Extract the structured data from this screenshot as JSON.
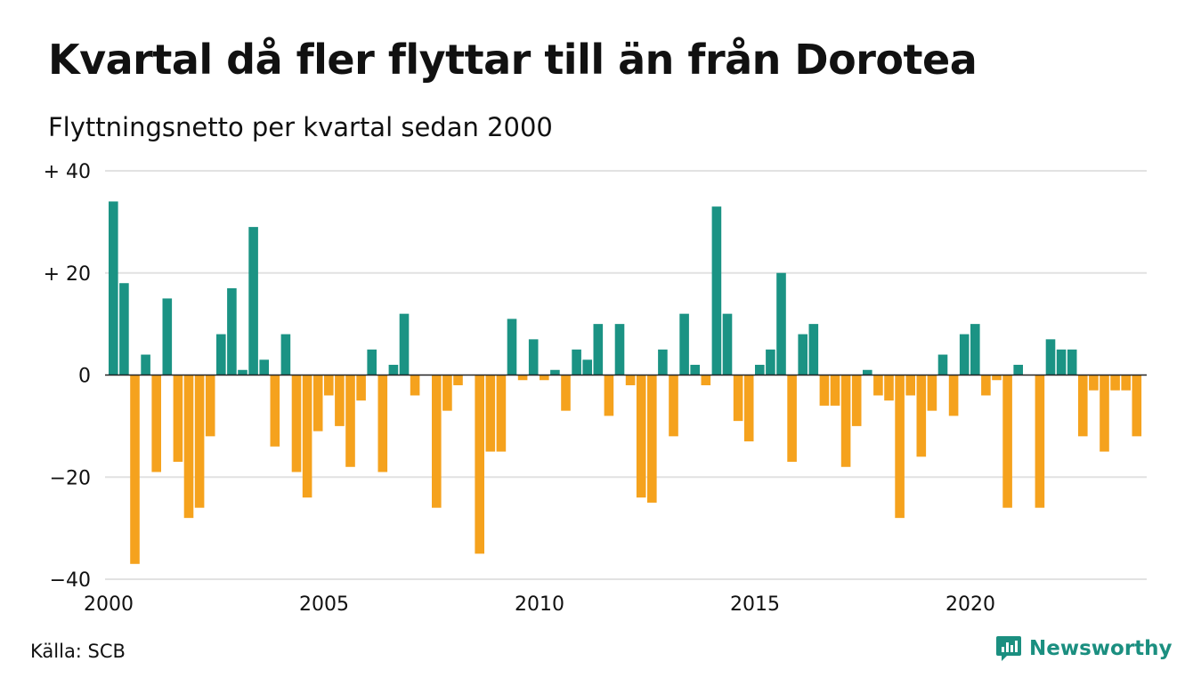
{
  "title": "Kvartal då fler flyttar till än från Dorotea",
  "subtitle": "Flyttningsnetto per kvartal sedan 2000",
  "source": "Källa: SCB",
  "brand": {
    "name": "Newsworthy",
    "icon": "newsworthy-logo-icon",
    "color": "#1b8f80"
  },
  "colors": {
    "positive": "#1b9384",
    "negative": "#f5a21d",
    "grid": "#e2e2e2",
    "zero_line": "#222222"
  },
  "chart_data": {
    "type": "bar",
    "title": "Kvartal då fler flyttar till än från Dorotea",
    "subtitle": "Flyttningsnetto per kvartal sedan 2000",
    "xlabel": "",
    "ylabel": "",
    "x_tick_labels": [
      "2000",
      "2005",
      "2010",
      "2015",
      "2020"
    ],
    "y_tick_labels": [
      "+ 40",
      "+ 20",
      "0",
      "−20",
      "−40"
    ],
    "y_ticks": [
      40,
      20,
      0,
      -20,
      -40
    ],
    "ylim": [
      -40,
      40
    ],
    "x_range": [
      "2000 Q1",
      "2023 Q4"
    ],
    "grid": true,
    "categories": [
      "2000 Q1",
      "2000 Q2",
      "2000 Q3",
      "2000 Q4",
      "2001 Q1",
      "2001 Q2",
      "2001 Q3",
      "2001 Q4",
      "2002 Q1",
      "2002 Q2",
      "2002 Q3",
      "2002 Q4",
      "2003 Q1",
      "2003 Q2",
      "2003 Q3",
      "2003 Q4",
      "2004 Q1",
      "2004 Q2",
      "2004 Q3",
      "2004 Q4",
      "2005 Q1",
      "2005 Q2",
      "2005 Q3",
      "2005 Q4",
      "2006 Q1",
      "2006 Q2",
      "2006 Q3",
      "2006 Q4",
      "2007 Q1",
      "2007 Q2",
      "2007 Q3",
      "2007 Q4",
      "2008 Q1",
      "2008 Q2",
      "2008 Q3",
      "2008 Q4",
      "2009 Q1",
      "2009 Q2",
      "2009 Q3",
      "2009 Q4",
      "2010 Q1",
      "2010 Q2",
      "2010 Q3",
      "2010 Q4",
      "2011 Q1",
      "2011 Q2",
      "2011 Q3",
      "2011 Q4",
      "2012 Q1",
      "2012 Q2",
      "2012 Q3",
      "2012 Q4",
      "2013 Q1",
      "2013 Q2",
      "2013 Q3",
      "2013 Q4",
      "2014 Q1",
      "2014 Q2",
      "2014 Q3",
      "2014 Q4",
      "2015 Q1",
      "2015 Q2",
      "2015 Q3",
      "2015 Q4",
      "2016 Q1",
      "2016 Q2",
      "2016 Q3",
      "2016 Q4",
      "2017 Q1",
      "2017 Q2",
      "2017 Q3",
      "2017 Q4",
      "2018 Q1",
      "2018 Q2",
      "2018 Q3",
      "2018 Q4",
      "2019 Q1",
      "2019 Q2",
      "2019 Q3",
      "2019 Q4",
      "2020 Q1",
      "2020 Q2",
      "2020 Q3",
      "2020 Q4",
      "2021 Q1",
      "2021 Q2",
      "2021 Q3",
      "2021 Q4",
      "2022 Q1",
      "2022 Q2",
      "2022 Q3",
      "2022 Q4",
      "2023 Q1",
      "2023 Q2",
      "2023 Q3",
      "2023 Q4"
    ],
    "values": [
      34,
      18,
      -37,
      4,
      -19,
      15,
      -17,
      -28,
      -26,
      -12,
      8,
      17,
      1,
      29,
      3,
      -14,
      8,
      -19,
      -24,
      -11,
      -4,
      -10,
      -18,
      -5,
      5,
      -19,
      2,
      12,
      -4,
      0,
      -26,
      -7,
      -2,
      0,
      -35,
      -15,
      -15,
      11,
      -1,
      7,
      -1,
      1,
      -7,
      5,
      3,
      10,
      -8,
      10,
      -2,
      -24,
      -25,
      5,
      -12,
      12,
      2,
      -2,
      33,
      12,
      -9,
      -13,
      2,
      5,
      20,
      -17,
      8,
      10,
      -6,
      -6,
      -18,
      -10,
      1,
      -4,
      -5,
      -28,
      -4,
      -16,
      -7,
      4,
      -8,
      8,
      10,
      -4,
      -1,
      -26,
      2,
      0,
      -26,
      7,
      5,
      5,
      -12,
      -3,
      -15,
      -3,
      -3,
      -12
    ]
  }
}
